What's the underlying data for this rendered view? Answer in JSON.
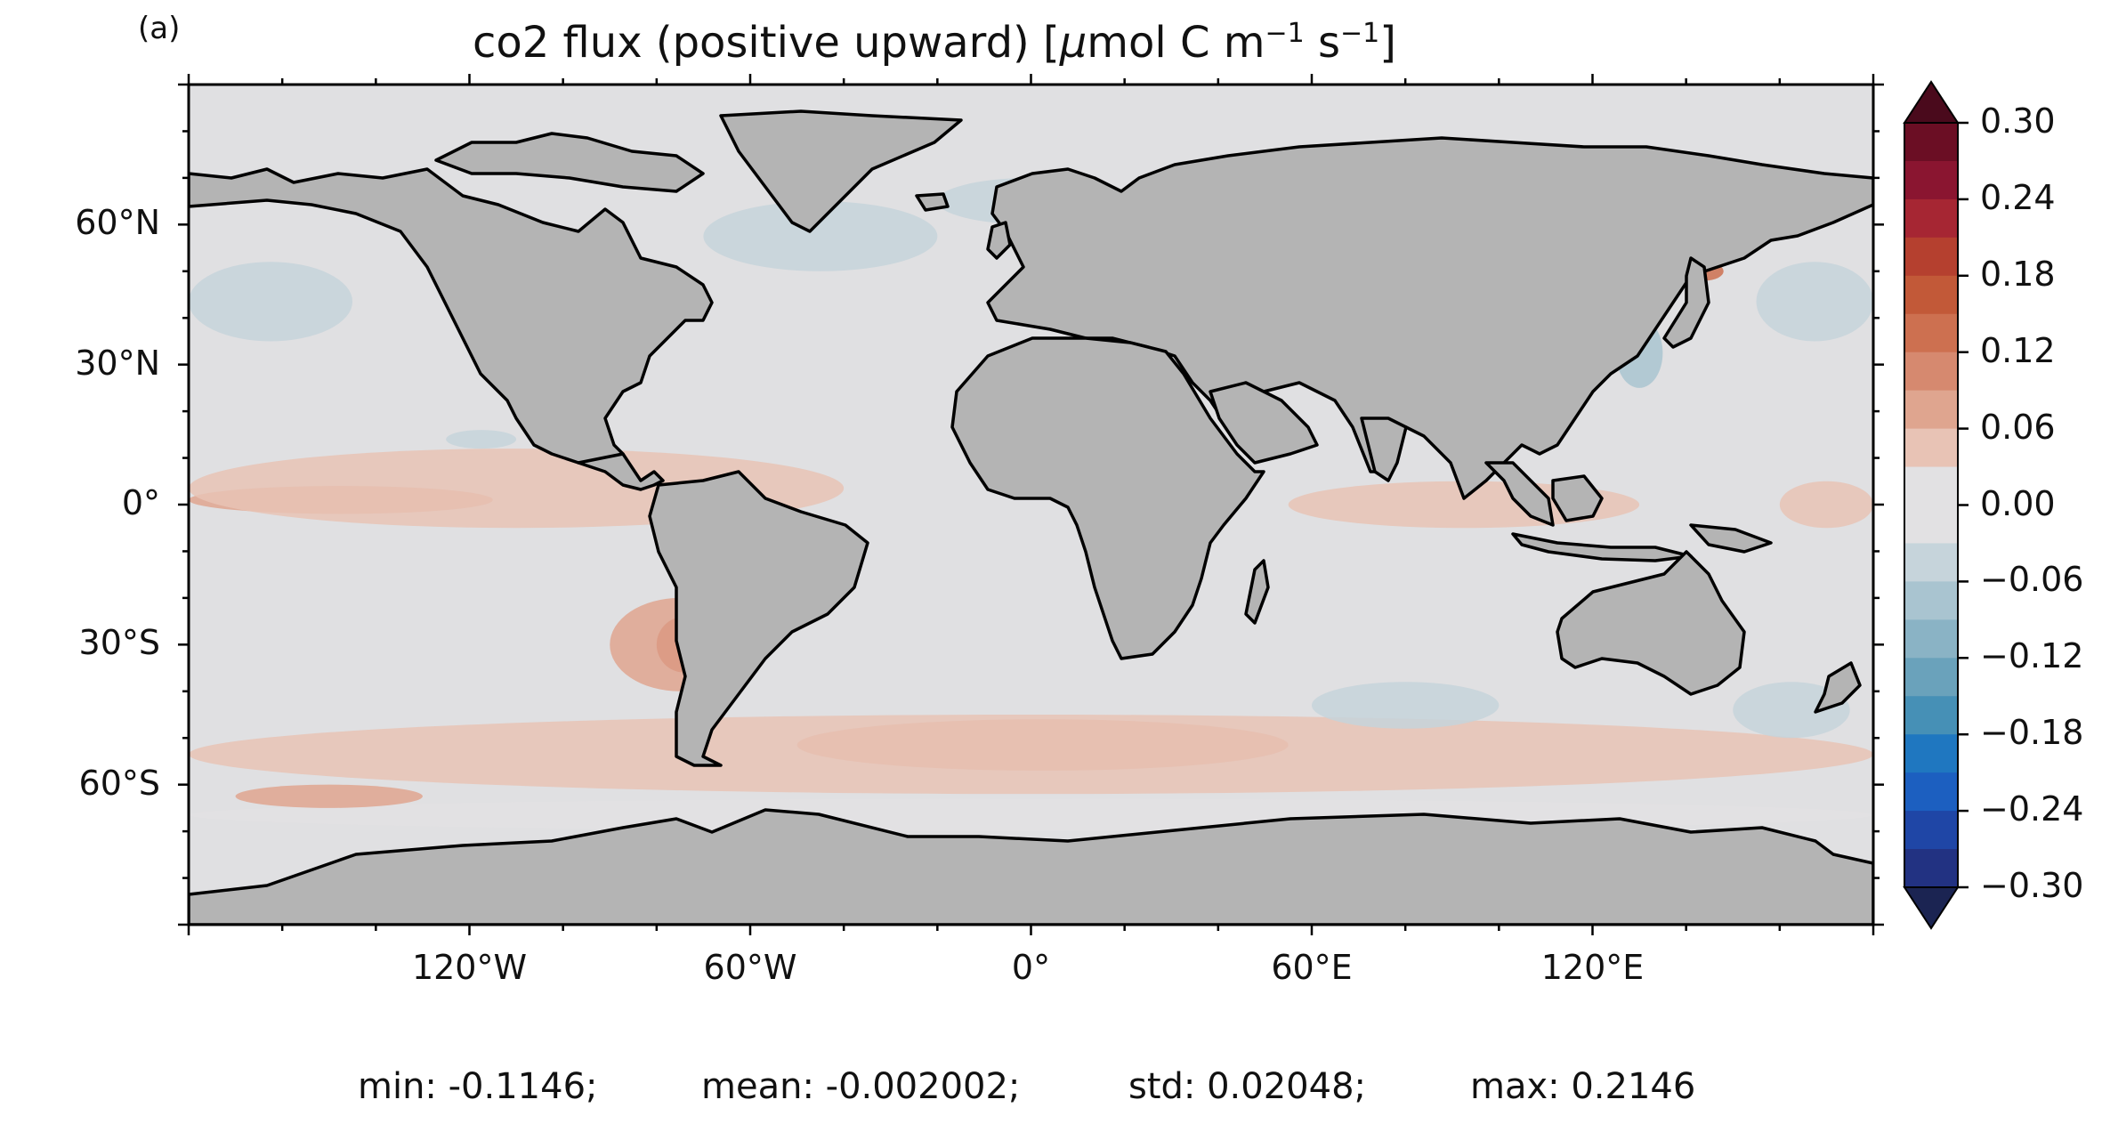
{
  "panel_label": "(a)",
  "title": {
    "main": "co2 flux (positive upward) [",
    "mu": "μ",
    "unit_a": "mol C m",
    "exp1": "−1",
    "unit_b": " s",
    "exp2": "−1",
    "close": "]"
  },
  "colors": {
    "land": "#b4b4b4",
    "ocean_base": "#e0e0e2",
    "ice": "#ffffff",
    "coast": "#000000",
    "positive_weak": "#edd5cf",
    "positive_mid": "#deaa98",
    "positive_strong": "#c25f42",
    "negative_weak": "#cfd9de",
    "negative_mid": "#b6cbd4",
    "negative_strong": "#8fb2c2"
  },
  "chart_data": {
    "type": "heatmap",
    "projection": "PlateCarree",
    "extent": {
      "lon": [
        -180,
        180
      ],
      "lat": [
        -90,
        90
      ]
    },
    "xticks": [
      {
        "value": -120,
        "label": "120°W"
      },
      {
        "value": -60,
        "label": "60°W"
      },
      {
        "value": 0,
        "label": "0°"
      },
      {
        "value": 60,
        "label": "60°E"
      },
      {
        "value": 120,
        "label": "120°E"
      }
    ],
    "yticks": [
      {
        "value": 60,
        "label": "60°N"
      },
      {
        "value": 30,
        "label": "30°N"
      },
      {
        "value": 0,
        "label": "0°"
      },
      {
        "value": -30,
        "label": "30°S"
      },
      {
        "value": -60,
        "label": "60°S"
      }
    ],
    "colorbar": {
      "range": [
        -0.3,
        0.3
      ],
      "extend": "both",
      "ticks": [
        {
          "value": 0.3,
          "label": "0.30"
        },
        {
          "value": 0.24,
          "label": "0.24"
        },
        {
          "value": 0.18,
          "label": "0.18"
        },
        {
          "value": 0.12,
          "label": "0.12"
        },
        {
          "value": 0.06,
          "label": "0.06"
        },
        {
          "value": 0.0,
          "label": "0.00"
        },
        {
          "value": -0.06,
          "label": "−0.06"
        },
        {
          "value": -0.12,
          "label": "−0.12"
        },
        {
          "value": -0.18,
          "label": "−0.18"
        },
        {
          "value": -0.24,
          "label": "−0.24"
        },
        {
          "value": -0.3,
          "label": "−0.30"
        }
      ],
      "levels": [
        {
          "from": 0.27,
          "to": 0.3,
          "color": "#6b0e24"
        },
        {
          "from": 0.24,
          "to": 0.27,
          "color": "#8a1530"
        },
        {
          "from": 0.21,
          "to": 0.24,
          "color": "#a62633"
        },
        {
          "from": 0.18,
          "to": 0.21,
          "color": "#b5402f"
        },
        {
          "from": 0.15,
          "to": 0.18,
          "color": "#c25938"
        },
        {
          "from": 0.12,
          "to": 0.15,
          "color": "#cd7050"
        },
        {
          "from": 0.09,
          "to": 0.12,
          "color": "#d6896f"
        },
        {
          "from": 0.06,
          "to": 0.09,
          "color": "#dfa58f"
        },
        {
          "from": 0.03,
          "to": 0.06,
          "color": "#e8c3b5"
        },
        {
          "from": 0.0,
          "to": 0.03,
          "color": "#e2e1e3"
        },
        {
          "from": -0.03,
          "to": 0.0,
          "color": "#e2e1e3"
        },
        {
          "from": -0.06,
          "to": -0.03,
          "color": "#c6d4db"
        },
        {
          "from": -0.09,
          "to": -0.06,
          "color": "#a9c4d0"
        },
        {
          "from": -0.12,
          "to": -0.09,
          "color": "#8ab3c5"
        },
        {
          "from": -0.15,
          "to": -0.12,
          "color": "#6aa2bb"
        },
        {
          "from": -0.18,
          "to": -0.15,
          "color": "#4690b6"
        },
        {
          "from": -0.21,
          "to": -0.18,
          "color": "#1f77c0"
        },
        {
          "from": -0.24,
          "to": -0.21,
          "color": "#1c5fc0"
        },
        {
          "from": -0.27,
          "to": -0.24,
          "color": "#1f46a6"
        },
        {
          "from": -0.3,
          "to": -0.27,
          "color": "#223282"
        }
      ],
      "extend_colors": {
        "top": "#4a0a1c",
        "bottom": "#1b2452"
      }
    },
    "flux_regions": [
      {
        "lon": [
          -180,
          -115
        ],
        "lat": [
          -2,
          4
        ],
        "value": 0.06
      },
      {
        "lon": [
          -180,
          -40
        ],
        "lat": [
          -5,
          12
        ],
        "value": 0.03
      },
      {
        "lon": [
          -80,
          -68
        ],
        "lat": [
          -36,
          -24
        ],
        "value": 0.15
      },
      {
        "lon": [
          -90,
          -60
        ],
        "lat": [
          -40,
          -20
        ],
        "value": 0.06
      },
      {
        "lon": [
          -50,
          55
        ],
        "lat": [
          -57,
          -46
        ],
        "value": 0.06
      },
      {
        "lon": [
          -180,
          180
        ],
        "lat": [
          -62,
          -45
        ],
        "value": 0.03
      },
      {
        "lon": [
          55,
          130
        ],
        "lat": [
          -5,
          5
        ],
        "value": 0.03
      },
      {
        "lon": [
          160,
          180
        ],
        "lat": [
          -5,
          5
        ],
        "value": 0.03
      },
      {
        "lon": [
          140,
          148
        ],
        "lat": [
          48,
          52
        ],
        "value": 0.12
      },
      {
        "lon": [
          -180,
          -145
        ],
        "lat": [
          35,
          52
        ],
        "value": -0.06
      },
      {
        "lon": [
          155,
          180
        ],
        "lat": [
          35,
          52
        ],
        "value": -0.06
      },
      {
        "lon": [
          -70,
          -20
        ],
        "lat": [
          50,
          65
        ],
        "value": -0.06
      },
      {
        "lon": [
          -20,
          20
        ],
        "lat": [
          60,
          70
        ],
        "value": -0.06
      },
      {
        "lon": [
          125,
          135
        ],
        "lat": [
          25,
          40
        ],
        "value": -0.09
      },
      {
        "lon": [
          60,
          100
        ],
        "lat": [
          -48,
          -38
        ],
        "value": -0.06
      },
      {
        "lon": [
          150,
          175
        ],
        "lat": [
          -50,
          -38
        ],
        "value": -0.06
      },
      {
        "lon": [
          -180,
          180
        ],
        "lat": [
          -70,
          -63
        ],
        "value": -0.03
      },
      {
        "lon": [
          -125,
          -110
        ],
        "lat": [
          12,
          16
        ],
        "value": -0.06
      },
      {
        "lon": [
          -170,
          -130
        ],
        "lat": [
          -65,
          -60
        ],
        "value": 0.06
      }
    ]
  },
  "stats": {
    "min": "min: -0.1146;",
    "mean": "mean: -0.002002;",
    "std": "std: 0.02048;",
    "max": "max: 0.2146"
  }
}
